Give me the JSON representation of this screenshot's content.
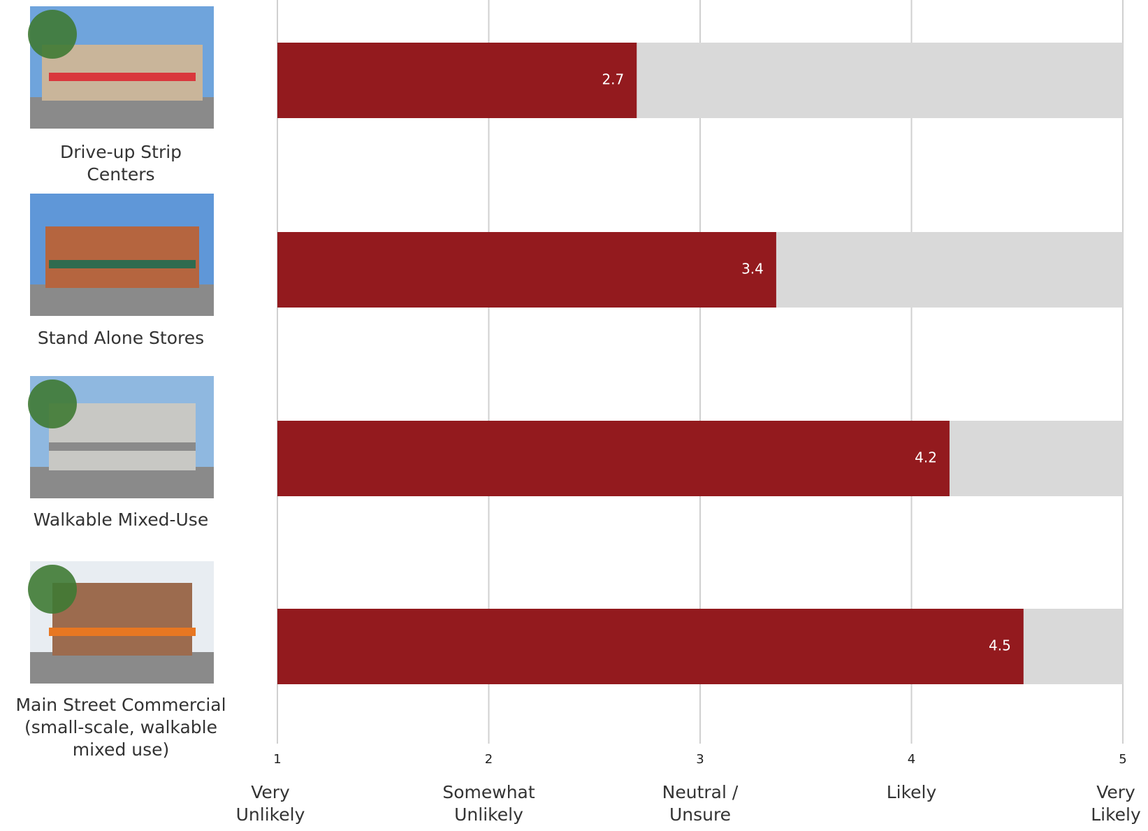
{
  "chart_data": {
    "type": "hbar",
    "categories": [
      "Drive-up Strip\nCenters",
      "Stand Alone Stores",
      "Walkable Mixed-Use",
      "Main Street Commercial\n(small-scale, walkable\nmixed use)"
    ],
    "values": [
      2.7,
      3.36,
      4.18,
      4.53
    ],
    "value_labels": [
      "2.7",
      "3.4",
      "4.2",
      "4.5"
    ],
    "color": "#931a1e",
    "xlim": [
      1,
      5
    ],
    "xticks": [
      1,
      2,
      3,
      4,
      5
    ],
    "xtick_descriptions": [
      "Very\nUnlikely",
      "Somewhat\nUnlikely",
      "Neutral /\nUnsure",
      "Likely",
      "Very\nLikely"
    ],
    "grid": true
  }
}
